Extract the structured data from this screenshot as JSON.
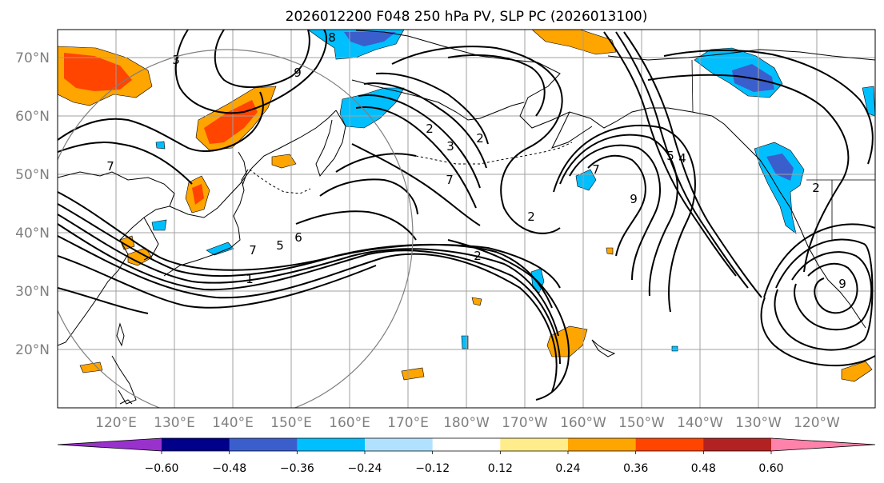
{
  "title": "2026012200 F048 250 hPa PV, SLP PC (2026013100)",
  "latitude_labels": [
    "70°N",
    "60°N",
    "50°N",
    "40°N",
    "30°N",
    "20°N"
  ],
  "longitude_labels": [
    "120°E",
    "130°E",
    "140°E",
    "150°E",
    "160°E",
    "170°E",
    "180°W",
    "170°W",
    "160°W",
    "150°W",
    "140°W",
    "130°W",
    "120°W"
  ],
  "colorbar": {
    "tick_labels": [
      "−0.60",
      "−0.48",
      "−0.36",
      "−0.24",
      "−0.12",
      "0.12",
      "0.24",
      "0.36",
      "0.48",
      "0.60"
    ],
    "colors": [
      "#9932cc",
      "#00008b",
      "#3a5fcd",
      "#00bfff",
      "#b0e2ff",
      "#ffffff",
      "#ffec8b",
      "#ffa500",
      "#ff4500",
      "#b22222",
      "#ff82ab"
    ]
  },
  "contour_labels": [
    "3",
    "9",
    "8",
    "7",
    "2",
    "2",
    "3",
    "7",
    "5",
    "4",
    "7",
    "9",
    "2",
    "2",
    "7",
    "5",
    "6",
    "1",
    "2",
    "9"
  ]
}
